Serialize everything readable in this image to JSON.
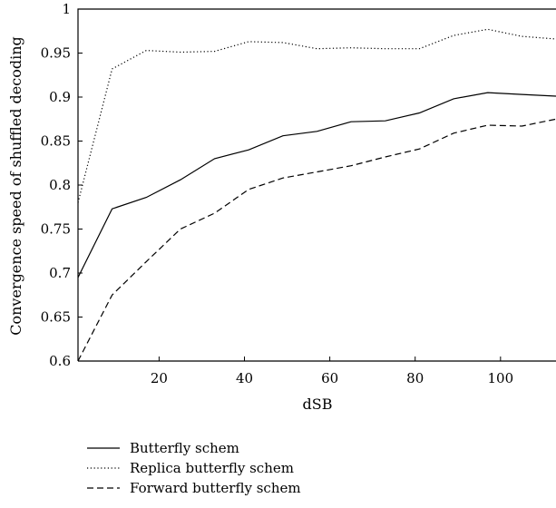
{
  "chart_data": {
    "type": "line",
    "xlabel": "dSB",
    "ylabel": "Convergence speed of shuffled decoding",
    "xlim": [
      1,
      113
    ],
    "ylim": [
      0.6,
      1.0
    ],
    "x_ticks": [
      20,
      40,
      60,
      80,
      100
    ],
    "y_ticks": [
      0.6,
      0.65,
      0.7,
      0.75,
      0.8,
      0.85,
      0.9,
      0.95,
      1
    ],
    "y_tick_labels": [
      "0.6",
      "0.65",
      "0.7",
      "0.75",
      "0.8",
      "0.85",
      "0.9",
      "0.95",
      "1"
    ],
    "grid": false,
    "legend_position": "below",
    "x": [
      1,
      9,
      17,
      25,
      33,
      41,
      49,
      57,
      65,
      73,
      81,
      89,
      97,
      105,
      113
    ],
    "series": [
      {
        "name": "Butterfly schem",
        "style": "solid",
        "values": [
          0.695,
          0.773,
          0.786,
          0.806,
          0.83,
          0.84,
          0.856,
          0.861,
          0.872,
          0.873,
          0.882,
          0.898,
          0.905,
          0.903,
          0.901
        ]
      },
      {
        "name": "Replica butterfly schem",
        "style": "dotted",
        "values": [
          0.78,
          0.932,
          0.953,
          0.951,
          0.952,
          0.963,
          0.962,
          0.955,
          0.956,
          0.955,
          0.955,
          0.97,
          0.977,
          0.969,
          0.966
        ]
      },
      {
        "name": "Forward butterfly schem",
        "style": "dashed",
        "values": [
          0.6,
          0.675,
          0.713,
          0.75,
          0.768,
          0.795,
          0.808,
          0.815,
          0.822,
          0.832,
          0.841,
          0.859,
          0.868,
          0.867,
          0.875
        ]
      }
    ]
  }
}
